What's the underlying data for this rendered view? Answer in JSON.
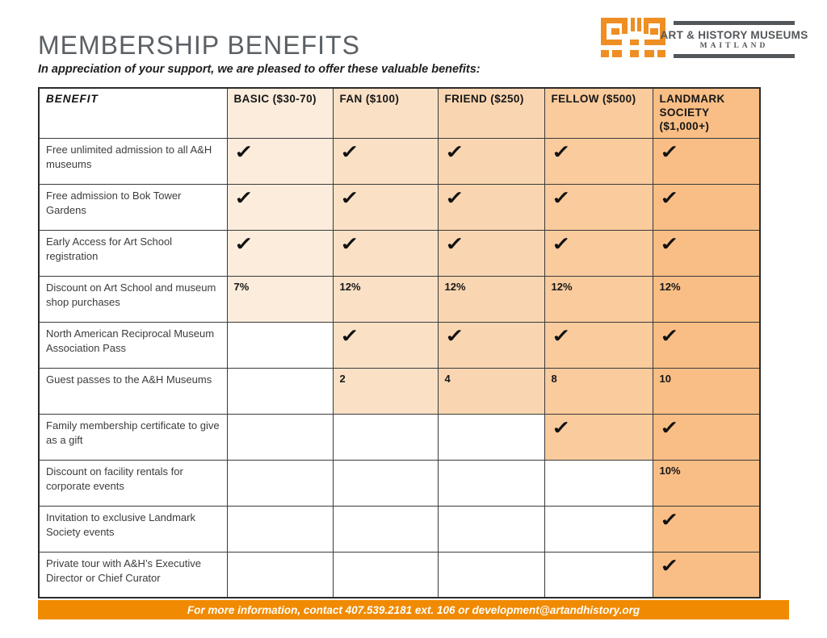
{
  "page": {
    "title": "MEMBERSHIP BENEFITS",
    "subtitle": "In appreciation of your support, we are pleased to offer these valuable benefits:"
  },
  "logo": {
    "name": "ART & HISTORY MUSEUMS",
    "sub": "MAITLAND",
    "mark_color": "#EE8E23",
    "text_color": "#54575A"
  },
  "table": {
    "benefit_header": "BENEFIT",
    "check_glyph": "✓",
    "tiers": [
      {
        "label": "BASIC ($30-70)",
        "color": "#FBECDC"
      },
      {
        "label": "FAN ($100)",
        "color": "#FAE1C6"
      },
      {
        "label": "FRIEND ($250)",
        "color": "#F9D6B1"
      },
      {
        "label": "FELLOW ($500)",
        "color": "#F9CB9D"
      },
      {
        "label": "LANDMARK SOCIETY ($1,000+)",
        "color": "#F8BE85"
      }
    ],
    "rows": [
      {
        "benefit": "Free unlimited admission to all A&H museums",
        "cells": [
          "check",
          "check",
          "check",
          "check",
          "check"
        ]
      },
      {
        "benefit": "Free admission to Bok Tower Gardens",
        "cells": [
          "check",
          "check",
          "check",
          "check",
          "check"
        ]
      },
      {
        "benefit": "Early Access for Art School registration",
        "cells": [
          "check",
          "check",
          "check",
          "check",
          "check"
        ]
      },
      {
        "benefit": "Discount on Art School and museum shop purchases",
        "cells": [
          "7%",
          "12%",
          "12%",
          "12%",
          "12%"
        ]
      },
      {
        "benefit": "North American Reciprocal Museum Association Pass",
        "cells": [
          "",
          "check",
          "check",
          "check",
          "check"
        ]
      },
      {
        "benefit": "Guest passes to the A&H Museums",
        "cells": [
          "",
          "2",
          "4",
          "8",
          "10"
        ]
      },
      {
        "benefit": "Family membership certificate to give as a gift",
        "cells": [
          "",
          "",
          "",
          "check",
          "check"
        ]
      },
      {
        "benefit": "Discount on facility rentals for corporate events",
        "cells": [
          "",
          "",
          "",
          "",
          "10%"
        ]
      },
      {
        "benefit": "Invitation to exclusive Landmark Society events",
        "cells": [
          "",
          "",
          "",
          "",
          "check"
        ]
      },
      {
        "benefit": "Private tour with A&H’s Executive Director or Chief Curator",
        "cells": [
          "",
          "",
          "",
          "",
          "check"
        ]
      }
    ]
  },
  "footer": {
    "text": "For more information, contact 407.539.2181 ext. 106 or development@artandhistory.org",
    "color": "#F08A00"
  }
}
